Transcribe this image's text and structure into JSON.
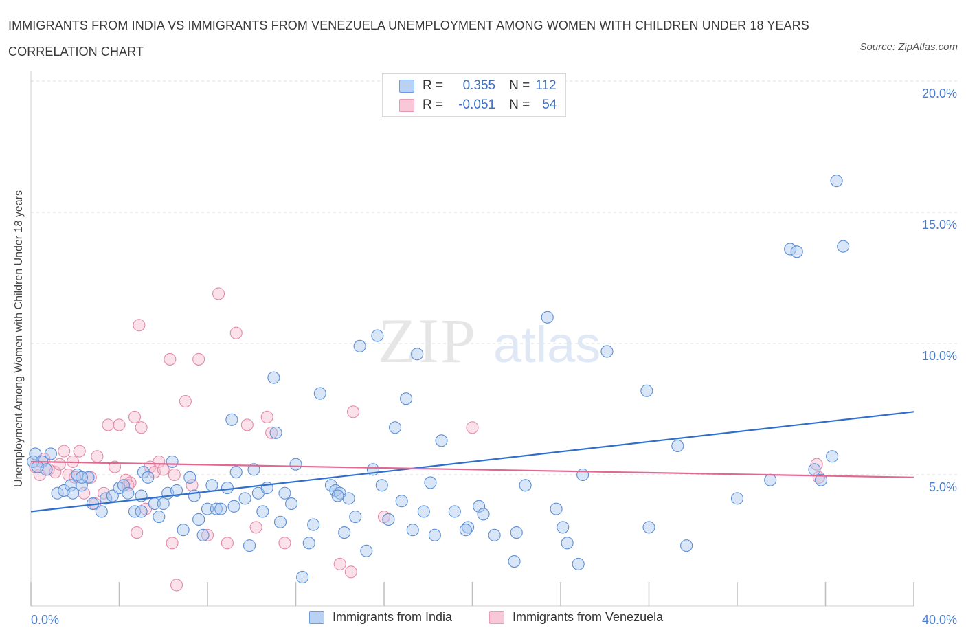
{
  "title": "IMMIGRANTS FROM INDIA VS IMMIGRANTS FROM VENEZUELA UNEMPLOYMENT AMONG WOMEN WITH CHILDREN UNDER 18 YEARS CORRELATION CHART",
  "source": "Source: ZipAtlas.com",
  "watermark": {
    "zip": "ZIP",
    "atlas": "atlas"
  },
  "legend": {
    "india": {
      "r_label": "R =",
      "r_value": "0.355",
      "n_label": "N =",
      "n_value": "112"
    },
    "venezuela": {
      "r_label": "R =",
      "r_value": "-0.051",
      "n_label": "N =",
      "n_value": "54"
    }
  },
  "bottom_legend": {
    "india": "Immigrants from India",
    "venezuela": "Immigrants from Venezuela"
  },
  "colors": {
    "india_fill": "#a9c8f0",
    "india_stroke": "#5b8fd6",
    "india_line": "#2f6fcc",
    "venezuela_fill": "#f6bccf",
    "venezuela_stroke": "#e58aa8",
    "venezuela_line": "#e06893",
    "grid": "#dedede",
    "axis_text": "#4a7ccc"
  },
  "chart_data": {
    "type": "scatter",
    "title": "IMMIGRANTS FROM INDIA VS IMMIGRANTS FROM VENEZUELA UNEMPLOYMENT AMONG WOMEN WITH CHILDREN UNDER 18 YEARS CORRELATION CHART",
    "xlabel": "",
    "ylabel": "Unemployment Among Women with Children Under 18 years",
    "xlim": [
      0,
      40
    ],
    "ylim": [
      0,
      20
    ],
    "x_tick_labels": [
      "0.0%",
      "40.0%"
    ],
    "y_tick_labels": [
      "5.0%",
      "10.0%",
      "15.0%",
      "20.0%"
    ],
    "y_ticks": [
      5,
      10,
      15,
      20
    ],
    "grid": true,
    "legend_position": "top-center",
    "series": [
      {
        "name": "Immigrants from India",
        "R": 0.355,
        "N": 112,
        "trend": {
          "x": [
            0,
            40
          ],
          "y": [
            3.6,
            7.4
          ]
        },
        "points": [
          [
            0.2,
            5.8
          ],
          [
            0.5,
            5.5
          ],
          [
            0.7,
            5.2
          ],
          [
            0.9,
            5.8
          ],
          [
            1.2,
            4.3
          ],
          [
            1.5,
            4.4
          ],
          [
            1.8,
            4.6
          ],
          [
            1.9,
            4.3
          ],
          [
            2.1,
            5.0
          ],
          [
            2.3,
            4.6
          ],
          [
            2.6,
            4.9
          ],
          [
            2.8,
            3.9
          ],
          [
            3.2,
            3.6
          ],
          [
            3.4,
            4.1
          ],
          [
            3.7,
            4.2
          ],
          [
            4.0,
            4.5
          ],
          [
            4.2,
            4.6
          ],
          [
            4.4,
            4.3
          ],
          [
            4.7,
            3.6
          ],
          [
            5.0,
            3.6
          ],
          [
            5.1,
            5.1
          ],
          [
            5.3,
            4.9
          ],
          [
            5.6,
            3.9
          ],
          [
            5.8,
            3.4
          ],
          [
            6.0,
            3.9
          ],
          [
            6.2,
            4.3
          ],
          [
            6.4,
            5.5
          ],
          [
            6.6,
            4.4
          ],
          [
            6.9,
            2.9
          ],
          [
            7.2,
            4.9
          ],
          [
            7.4,
            4.2
          ],
          [
            7.6,
            3.3
          ],
          [
            7.8,
            2.7
          ],
          [
            8.0,
            3.7
          ],
          [
            8.2,
            4.6
          ],
          [
            8.4,
            3.7
          ],
          [
            8.6,
            3.7
          ],
          [
            8.9,
            4.5
          ],
          [
            9.2,
            3.8
          ],
          [
            9.3,
            5.1
          ],
          [
            9.7,
            4.1
          ],
          [
            9.9,
            2.3
          ],
          [
            10.1,
            5.2
          ],
          [
            10.3,
            4.3
          ],
          [
            10.5,
            3.6
          ],
          [
            10.7,
            4.5
          ],
          [
            11.0,
            8.7
          ],
          [
            11.1,
            6.6
          ],
          [
            11.3,
            3.2
          ],
          [
            11.5,
            4.3
          ],
          [
            11.8,
            3.9
          ],
          [
            12.0,
            5.4
          ],
          [
            12.3,
            1.1
          ],
          [
            12.6,
            2.4
          ],
          [
            12.8,
            3.1
          ],
          [
            13.1,
            8.1
          ],
          [
            13.6,
            4.6
          ],
          [
            13.8,
            4.4
          ],
          [
            14.0,
            4.3
          ],
          [
            14.2,
            2.8
          ],
          [
            14.4,
            4.1
          ],
          [
            14.7,
            3.4
          ],
          [
            14.9,
            9.9
          ],
          [
            15.2,
            2.1
          ],
          [
            15.5,
            5.2
          ],
          [
            15.7,
            10.3
          ],
          [
            15.9,
            4.6
          ],
          [
            16.2,
            3.3
          ],
          [
            16.5,
            6.8
          ],
          [
            16.8,
            4.0
          ],
          [
            17.0,
            7.9
          ],
          [
            17.3,
            2.9
          ],
          [
            17.5,
            9.6
          ],
          [
            17.8,
            3.6
          ],
          [
            18.1,
            4.7
          ],
          [
            18.3,
            2.7
          ],
          [
            18.6,
            6.3
          ],
          [
            19.2,
            3.6
          ],
          [
            19.8,
            3.0
          ],
          [
            20.3,
            3.8
          ],
          [
            20.5,
            3.5
          ],
          [
            21.0,
            2.7
          ],
          [
            21.9,
            1.7
          ],
          [
            22.0,
            2.8
          ],
          [
            22.4,
            4.6
          ],
          [
            23.4,
            11.0
          ],
          [
            23.8,
            3.7
          ],
          [
            24.3,
            2.4
          ],
          [
            24.8,
            1.6
          ],
          [
            25.0,
            5.0
          ],
          [
            26.1,
            9.7
          ],
          [
            27.9,
            8.2
          ],
          [
            28.0,
            3.0
          ],
          [
            29.3,
            6.1
          ],
          [
            29.7,
            2.3
          ],
          [
            32.0,
            4.1
          ],
          [
            33.5,
            4.8
          ],
          [
            34.4,
            13.6
          ],
          [
            34.7,
            13.5
          ],
          [
            35.5,
            5.2
          ],
          [
            35.8,
            4.8
          ],
          [
            36.3,
            5.7
          ],
          [
            36.5,
            16.2
          ],
          [
            36.8,
            13.7
          ],
          [
            9.1,
            7.1
          ],
          [
            13.9,
            4.2
          ],
          [
            5.0,
            4.2
          ],
          [
            2.3,
            4.9
          ],
          [
            24.1,
            3.0
          ],
          [
            19.7,
            2.9
          ],
          [
            0.1,
            5.5
          ],
          [
            0.3,
            5.3
          ]
        ]
      },
      {
        "name": "Immigrants from Venezuela",
        "R": -0.051,
        "N": 54,
        "trend": {
          "x": [
            0,
            40
          ],
          "y": [
            5.5,
            4.9
          ]
        },
        "points": [
          [
            0.2,
            5.3
          ],
          [
            0.4,
            5.0
          ],
          [
            0.6,
            5.6
          ],
          [
            0.8,
            5.2
          ],
          [
            1.1,
            5.1
          ],
          [
            1.3,
            5.4
          ],
          [
            1.5,
            5.9
          ],
          [
            1.7,
            5.0
          ],
          [
            1.9,
            5.5
          ],
          [
            2.0,
            4.9
          ],
          [
            2.2,
            5.9
          ],
          [
            2.4,
            4.3
          ],
          [
            2.7,
            4.9
          ],
          [
            2.9,
            3.9
          ],
          [
            3.0,
            5.7
          ],
          [
            3.3,
            4.3
          ],
          [
            3.5,
            6.9
          ],
          [
            3.8,
            5.3
          ],
          [
            4.0,
            6.9
          ],
          [
            4.3,
            4.8
          ],
          [
            4.5,
            4.7
          ],
          [
            4.7,
            7.2
          ],
          [
            4.8,
            2.8
          ],
          [
            4.9,
            10.7
          ],
          [
            5.0,
            6.8
          ],
          [
            5.2,
            3.7
          ],
          [
            5.4,
            5.3
          ],
          [
            5.6,
            5.1
          ],
          [
            5.8,
            5.5
          ],
          [
            6.0,
            5.2
          ],
          [
            6.3,
            9.4
          ],
          [
            6.4,
            2.4
          ],
          [
            6.6,
            0.8
          ],
          [
            7.0,
            7.8
          ],
          [
            7.3,
            4.6
          ],
          [
            7.6,
            9.4
          ],
          [
            8.0,
            2.7
          ],
          [
            8.5,
            11.9
          ],
          [
            8.9,
            2.4
          ],
          [
            9.3,
            10.4
          ],
          [
            9.8,
            6.9
          ],
          [
            10.2,
            3.0
          ],
          [
            10.7,
            7.2
          ],
          [
            10.9,
            6.6
          ],
          [
            11.5,
            2.4
          ],
          [
            14.0,
            1.6
          ],
          [
            14.5,
            1.3
          ],
          [
            14.6,
            7.4
          ],
          [
            16.0,
            3.4
          ],
          [
            20.0,
            6.8
          ],
          [
            35.6,
            5.4
          ],
          [
            35.7,
            4.9
          ],
          [
            4.4,
            4.6
          ],
          [
            6.5,
            5.0
          ]
        ]
      }
    ]
  }
}
